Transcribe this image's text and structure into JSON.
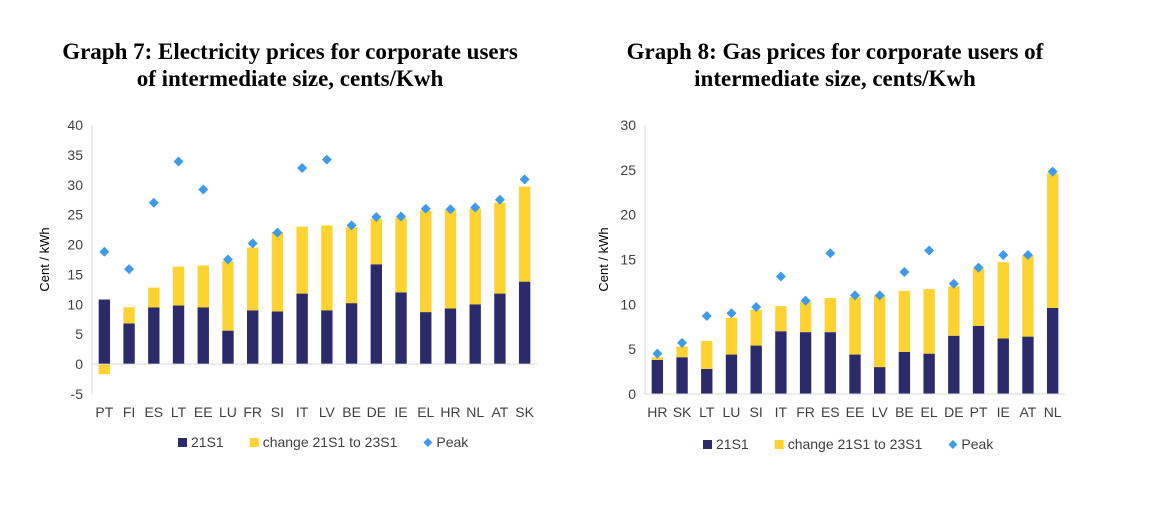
{
  "colors": {
    "base": "#2b2b6b",
    "change": "#fdd231",
    "peak": "#3d9be9",
    "axis": "#d9d9d9"
  },
  "chart_data": [
    {
      "type": "bar",
      "title": "Graph 7: Electricity prices for corporate users of intermediate size, cents/Kwh",
      "title_lines": [
        "Graph 7: Electricity prices for corporate users",
        "of intermediate size, cents/Kwh"
      ],
      "ylabel": "Cent / kWh",
      "xlabel": "",
      "ylim": [
        -5,
        40
      ],
      "yticks": [
        -5,
        0,
        5,
        10,
        15,
        20,
        25,
        30,
        35,
        40
      ],
      "stacked": true,
      "legend_position": "bottom",
      "categories": [
        "PT",
        "FI",
        "ES",
        "LT",
        "EE",
        "LU",
        "FR",
        "SI",
        "IT",
        "LV",
        "BE",
        "DE",
        "IE",
        "EL",
        "HR",
        "NL",
        "AT",
        "SK"
      ],
      "series": [
        {
          "name": "21S1",
          "kind": "bar",
          "values": [
            10.8,
            6.8,
            9.5,
            9.8,
            9.5,
            5.6,
            9.0,
            8.8,
            11.8,
            9.0,
            10.2,
            16.7,
            12.0,
            8.7,
            9.3,
            10.0,
            11.8,
            13.8
          ]
        },
        {
          "name": "change 21S1 to 23S1",
          "kind": "bar",
          "values": [
            -1.7,
            2.7,
            3.3,
            6.5,
            7.0,
            11.6,
            10.5,
            13.3,
            11.2,
            14.2,
            12.7,
            7.6,
            12.5,
            17.0,
            16.5,
            16.0,
            15.2,
            15.9
          ]
        },
        {
          "name": "Peak",
          "kind": "marker",
          "values": [
            18.8,
            15.9,
            27.0,
            33.9,
            29.2,
            17.5,
            20.2,
            22.0,
            32.8,
            34.2,
            23.2,
            24.6,
            24.7,
            26.0,
            25.9,
            26.2,
            27.5,
            30.9
          ]
        }
      ]
    },
    {
      "type": "bar",
      "title": "Graph 8: Gas prices for corporate users of intermediate size, cents/Kwh",
      "title_lines": [
        "Graph 8: Gas prices for corporate users of",
        "intermediate size, cents/Kwh"
      ],
      "ylabel": "Cent / kWh",
      "xlabel": "",
      "ylim": [
        0,
        30
      ],
      "yticks": [
        0,
        5,
        10,
        15,
        20,
        25,
        30
      ],
      "stacked": true,
      "legend_position": "bottom",
      "categories": [
        "HR",
        "SK",
        "LT",
        "LU",
        "SI",
        "IT",
        "FR",
        "ES",
        "EE",
        "LV",
        "BE",
        "EL",
        "DE",
        "PT",
        "IE",
        "AT",
        "NL"
      ],
      "series": [
        {
          "name": "21S1",
          "kind": "bar",
          "values": [
            3.8,
            4.1,
            2.8,
            4.4,
            5.4,
            7.0,
            6.9,
            6.9,
            4.4,
            3.0,
            4.7,
            4.5,
            6.5,
            7.6,
            6.2,
            6.4,
            9.6
          ]
        },
        {
          "name": "change 21S1 to 23S1",
          "kind": "bar",
          "values": [
            0.3,
            1.2,
            3.1,
            4.1,
            4.0,
            2.8,
            3.4,
            3.8,
            6.4,
            8.0,
            6.8,
            7.2,
            5.5,
            6.4,
            8.5,
            9.1,
            15.0
          ]
        },
        {
          "name": "Peak",
          "kind": "marker",
          "values": [
            4.5,
            5.7,
            8.7,
            9.0,
            9.7,
            13.1,
            10.4,
            15.7,
            11.0,
            11.0,
            13.6,
            16.0,
            12.3,
            14.1,
            15.5,
            15.5,
            24.8
          ]
        }
      ]
    }
  ]
}
